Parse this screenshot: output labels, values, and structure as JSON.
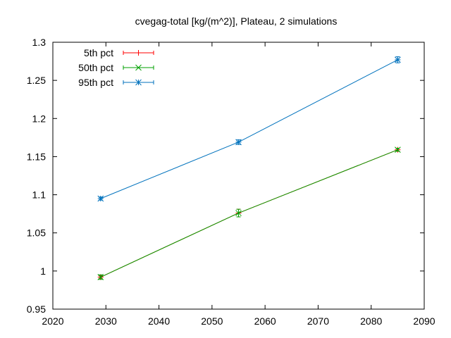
{
  "chart_data": {
    "type": "line",
    "title": "cvegag-total [kg/(m^2)], Plateau, 2 simulations",
    "xlabel": "",
    "ylabel": "",
    "xlim": [
      2020,
      2090
    ],
    "ylim": [
      0.95,
      1.3
    ],
    "xticks": [
      2020,
      2030,
      2040,
      2050,
      2060,
      2070,
      2080,
      2090
    ],
    "yticks": [
      0.95,
      1,
      1.05,
      1.1,
      1.15,
      1.2,
      1.25,
      1.3
    ],
    "xtick_labels": [
      "2020",
      "2030",
      "2040",
      "2050",
      "2060",
      "2070",
      "2080",
      "2090"
    ],
    "ytick_labels": [
      "0.95",
      "1",
      "1.05",
      "1.1",
      "1.15",
      "1.2",
      "1.25",
      "1.3"
    ],
    "grid": false,
    "legend_position": "top-left",
    "x": [
      2029,
      2055,
      2085
    ],
    "series": [
      {
        "name": "5th pct",
        "color": "#ff0000",
        "marker": "plus",
        "values": [
          0.992,
          1.076,
          1.159
        ],
        "err": [
          0.002,
          0.005,
          0.002
        ]
      },
      {
        "name": "50th pct",
        "color": "#00a000",
        "marker": "cross",
        "values": [
          0.992,
          1.076,
          1.159
        ],
        "err": [
          0.003,
          0.005,
          0.002
        ]
      },
      {
        "name": "95th pct",
        "color": "#0072bd",
        "marker": "star",
        "values": [
          1.095,
          1.169,
          1.277
        ],
        "err": [
          0.002,
          0.003,
          0.004
        ]
      }
    ]
  }
}
